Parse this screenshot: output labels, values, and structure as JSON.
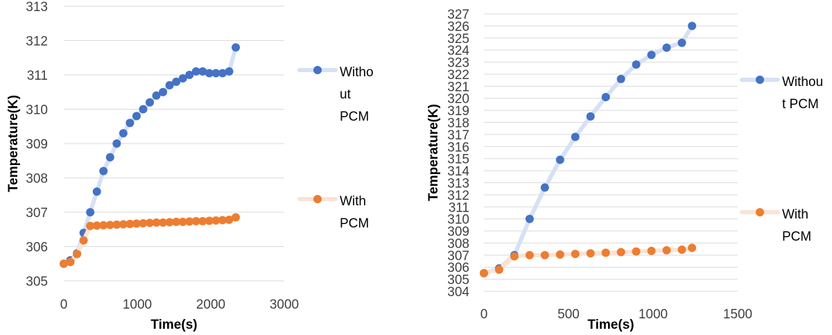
{
  "chart_data": [
    {
      "type": "line",
      "xlabel": "Time(s)",
      "ylabel": "Temperature(K)",
      "xlim": [
        0,
        3000
      ],
      "ylim": [
        305,
        313
      ],
      "x_ticks": [
        "0",
        "1000",
        "2000",
        "3000"
      ],
      "y_ticks": [
        "305",
        "306",
        "307",
        "308",
        "309",
        "310",
        "311",
        "312",
        "313"
      ],
      "grid": "horizontal",
      "legend_position": "right",
      "series": [
        {
          "name": "Without PCM",
          "legend_lines": [
            "Witho",
            "ut",
            "PCM"
          ],
          "color": "#4472C4",
          "line_color": "#D6E1F5",
          "x": [
            0,
            90,
            180,
            270,
            360,
            450,
            540,
            630,
            720,
            810,
            900,
            990,
            1080,
            1170,
            1260,
            1350,
            1440,
            1530,
            1620,
            1710,
            1800,
            1890,
            1980,
            2070,
            2160,
            2250,
            2340
          ],
          "y": [
            305.5,
            305.6,
            305.8,
            306.4,
            307.0,
            307.6,
            308.2,
            308.6,
            309.0,
            309.3,
            309.6,
            309.8,
            310.0,
            310.2,
            310.4,
            310.5,
            310.7,
            310.8,
            310.9,
            311.0,
            311.1,
            311.1,
            311.05,
            311.05,
            311.05,
            311.1,
            311.8
          ]
        },
        {
          "name": "With PCM",
          "legend_lines": [
            "With",
            "PCM"
          ],
          "color": "#ED7D31",
          "line_color": "#FBE3D4",
          "x": [
            0,
            90,
            180,
            270,
            360,
            450,
            540,
            630,
            720,
            810,
            900,
            990,
            1080,
            1170,
            1260,
            1350,
            1440,
            1530,
            1620,
            1710,
            1800,
            1890,
            1980,
            2070,
            2160,
            2250,
            2340
          ],
          "y": [
            305.5,
            305.55,
            305.78,
            306.18,
            306.6,
            306.61,
            306.62,
            306.63,
            306.64,
            306.65,
            306.66,
            306.67,
            306.68,
            306.69,
            306.7,
            306.7,
            306.71,
            306.72,
            306.72,
            306.73,
            306.74,
            306.74,
            306.75,
            306.76,
            306.77,
            306.78,
            306.85
          ]
        }
      ]
    },
    {
      "type": "line",
      "xlabel": "Time(s)",
      "ylabel": "Temperature(K)",
      "xlim": [
        0,
        1500
      ],
      "ylim": [
        304,
        327
      ],
      "x_ticks": [
        "0",
        "500",
        "1000",
        "1500"
      ],
      "y_ticks": [
        "304",
        "305",
        "306",
        "307",
        "308",
        "309",
        "310",
        "311",
        "312",
        "313",
        "314",
        "315",
        "316",
        "317",
        "318",
        "319",
        "320",
        "321",
        "322",
        "323",
        "324",
        "325",
        "326",
        "327"
      ],
      "grid": "horizontal",
      "legend_position": "right",
      "series": [
        {
          "name": "Without PCM",
          "legend_lines": [
            "Withou",
            "t PCM"
          ],
          "color": "#4472C4",
          "line_color": "#D6E1F5",
          "x": [
            0,
            90,
            180,
            270,
            360,
            450,
            540,
            630,
            720,
            810,
            900,
            990,
            1080,
            1170,
            1230
          ],
          "y": [
            305.5,
            305.9,
            307.0,
            310.0,
            312.6,
            314.9,
            316.8,
            318.5,
            320.1,
            321.6,
            322.8,
            323.6,
            324.2,
            324.6,
            326.0
          ]
        },
        {
          "name": "With PCM",
          "legend_lines": [
            "With",
            "PCM"
          ],
          "color": "#ED7D31",
          "line_color": "#FBE3D4",
          "x": [
            0,
            90,
            180,
            270,
            360,
            450,
            540,
            630,
            720,
            810,
            900,
            990,
            1080,
            1170,
            1230
          ],
          "y": [
            305.5,
            305.8,
            306.9,
            307.0,
            307.0,
            307.05,
            307.1,
            307.15,
            307.2,
            307.25,
            307.3,
            307.35,
            307.4,
            307.45,
            307.6
          ]
        }
      ]
    }
  ]
}
